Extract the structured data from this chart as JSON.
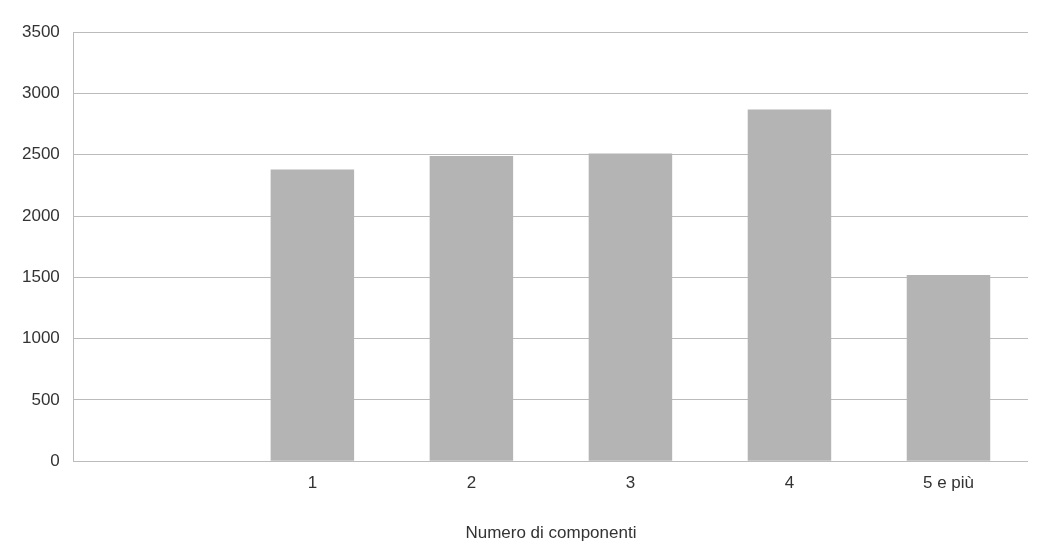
{
  "chart_data": {
    "type": "bar",
    "xlabel": "Numero di componenti",
    "categories": [
      null,
      "1",
      "2",
      "3",
      "4",
      "5 e più"
    ],
    "values": [
      null,
      2380,
      2490,
      2510,
      2870,
      1520
    ],
    "color": "#b4b4b4",
    "ylim": [
      0,
      3500
    ],
    "yticks": [
      0,
      500,
      1000,
      1500,
      2000,
      2500,
      3000,
      3500
    ],
    "grid": "y"
  }
}
